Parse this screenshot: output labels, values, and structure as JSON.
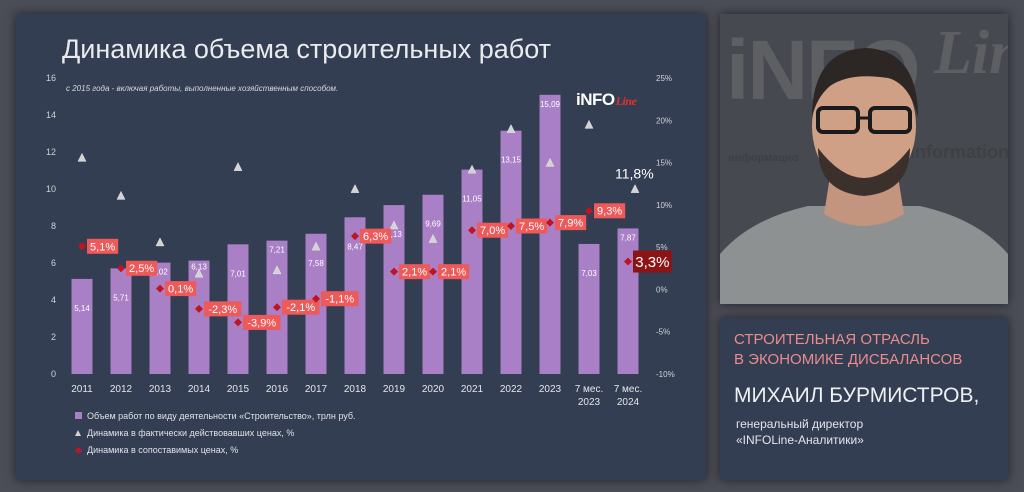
{
  "chart_data": {
    "type": "bar",
    "title": "Динамика объема строительных работ",
    "subtitle": "с 2015 года - включая работы, выполненные хозяйственным способом.",
    "categories": [
      [
        "2011"
      ],
      [
        "2012"
      ],
      [
        "2013"
      ],
      [
        "2014"
      ],
      [
        "2015"
      ],
      [
        "2016"
      ],
      [
        "2017"
      ],
      [
        "2018"
      ],
      [
        "2019"
      ],
      [
        "2020"
      ],
      [
        "2021"
      ],
      [
        "2022"
      ],
      [
        "2023"
      ],
      [
        "7 мес.",
        "2023"
      ],
      [
        "7 мес.",
        "2024"
      ]
    ],
    "series": [
      {
        "name": "Объем работ по виду деятельности «Строительство», трлн руб.",
        "type": "bar",
        "axis": "left",
        "color": "#a97fc6",
        "values": [
          5.14,
          5.71,
          6.02,
          6.13,
          7.01,
          7.21,
          7.58,
          8.47,
          9.13,
          9.69,
          11.05,
          13.15,
          15.09,
          7.03,
          7.87
        ],
        "labels": [
          "5,14",
          "5,71",
          "6,02",
          "6,13",
          "7,01",
          "7,21",
          "7,58",
          "8,47",
          "9,13",
          "9,69",
          "11,05",
          "13,15",
          "15,09",
          "7,03",
          "7,87"
        ]
      },
      {
        "name": "Динамика в фактически действовавших  ценах, %",
        "type": "scatter",
        "marker": "triangle",
        "axis": "right",
        "color": "#d3d3d3",
        "values": [
          15.5,
          11.0,
          5.5,
          1.8,
          14.4,
          2.2,
          5.0,
          11.8,
          7.5,
          5.9,
          14.1,
          18.9,
          14.9,
          19.4,
          11.8
        ],
        "labels": [
          "",
          "",
          "",
          "",
          "",
          "",
          "",
          "",
          "",
          "",
          "",
          "",
          "",
          "",
          "11,8%"
        ]
      },
      {
        "name": "Динамика в сопоставимых ценах, %",
        "type": "scatter",
        "marker": "diamond",
        "axis": "right",
        "color": "#c01521",
        "values": [
          5.1,
          2.5,
          0.1,
          -2.3,
          -3.9,
          -2.1,
          -1.1,
          6.3,
          2.1,
          2.1,
          7.0,
          7.5,
          7.9,
          9.3,
          3.3
        ],
        "labels": [
          "5,1%",
          "2,5%",
          "0,1%",
          "-2,3%",
          "-3,9%",
          "-2,1%",
          "-1,1%",
          "6,3%",
          "2,1%",
          "2,1%",
          "7,0%",
          "7,5%",
          "7,9%",
          "9,3%",
          "3,3%"
        ]
      }
    ],
    "y_left": {
      "range": [
        0,
        16
      ],
      "ticks": [
        "0",
        "2",
        "4",
        "6",
        "8",
        "10",
        "12",
        "14",
        "16"
      ]
    },
    "y_right": {
      "range": [
        -10,
        25
      ],
      "ticks": [
        "-10%",
        "-5%",
        "0%",
        "5%",
        "10%",
        "15%",
        "20%",
        "25%"
      ]
    },
    "grid": false,
    "legend_position": "bottom-left",
    "colors": {
      "panel": "#343e52",
      "bar": "#a97fc6",
      "triangle": "#d3d3d3",
      "diamond": "#c01521",
      "label_bg": "#ee5a5a",
      "highlight_bg": "#8b1414"
    }
  },
  "logo": {
    "main": "iNFO",
    "line": "Line"
  },
  "info": {
    "heading_line1": "СТРОИТЕЛЬНАЯ ОТРАСЛЬ",
    "heading_line2": "В ЭКОНОМИКЕ ДИСБАЛАНСОВ",
    "name": "МИХАИЛ БУРМИСТРОВ,",
    "role_line1": "генеральный директор",
    "role_line2": "«INFOLine-Аналитики»"
  },
  "photo": {
    "bg_word1": "iNFO",
    "bg_word2": "Lin",
    "bg_small": "информацио",
    "bg_small2": "information"
  }
}
